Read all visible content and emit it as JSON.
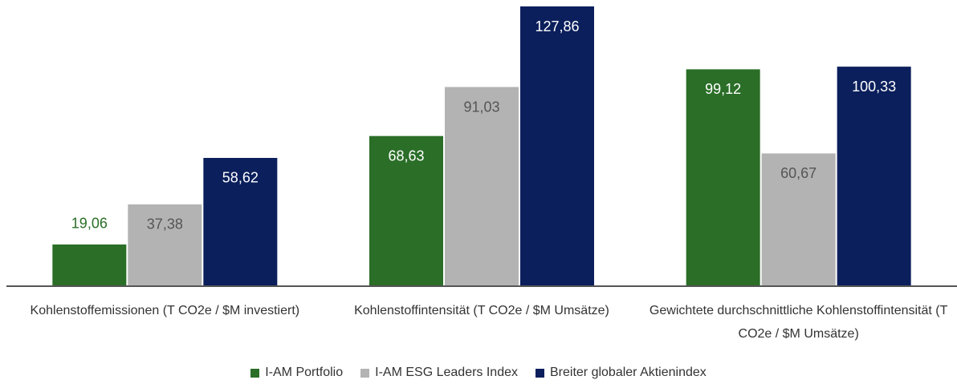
{
  "chart_data": {
    "type": "bar",
    "categories": [
      "Kohlenstoffemissionen (T CO2e / $M investiert)",
      "Kohlenstoffintensität (T CO2e / $M Umsätze)",
      "Gewichtete durchschnittliche Kohlenstoffintensität (T CO2e / $M Umsätze)"
    ],
    "series": [
      {
        "name": "I-AM Portfolio",
        "color": "#2a6e27",
        "label_color": "#ffffff",
        "values": [
          19.06,
          68.63,
          99.12
        ],
        "value_labels": [
          "19,06",
          "68,63",
          "99,12"
        ]
      },
      {
        "name": "I-AM ESG Leaders Index",
        "color": "#b3b3b3",
        "label_color": "#555555",
        "values": [
          37.38,
          91.03,
          60.67
        ],
        "value_labels": [
          "37,38",
          "91,03",
          "60,67"
        ]
      },
      {
        "name": "Breiter globaler Aktienindex",
        "color": "#0b1f5c",
        "label_color": "#ffffff",
        "values": [
          58.62,
          127.86,
          100.33
        ],
        "value_labels": [
          "58,62",
          "127,86",
          "100,33"
        ]
      }
    ]
  }
}
